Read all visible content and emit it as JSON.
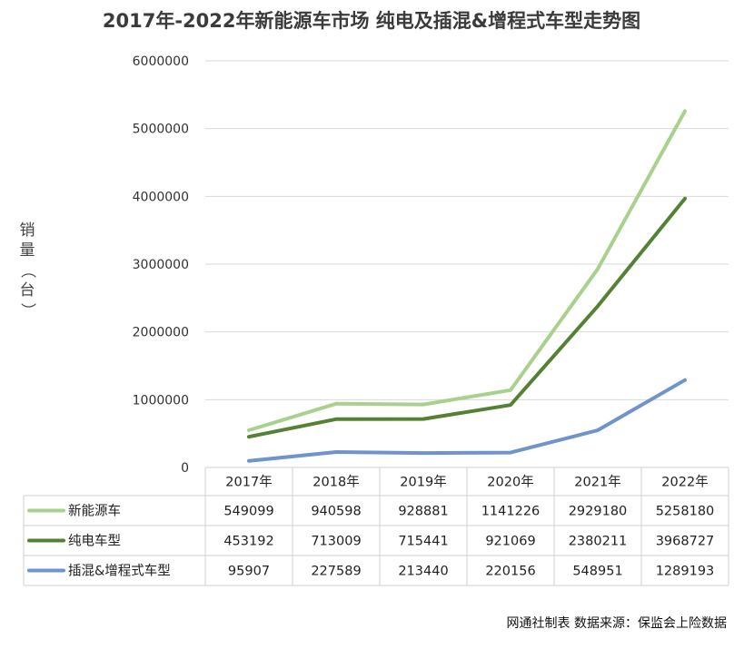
{
  "chart_data": {
    "type": "line",
    "title": "2017年-2022年新能源车市场 纯电及插混&增程式车型走势图",
    "ylabel": "销量（台）",
    "xlabel": "",
    "categories": [
      "2017年",
      "2018年",
      "2019年",
      "2020年",
      "2021年",
      "2022年"
    ],
    "ylim": [
      0,
      6000000
    ],
    "yticks": [
      0,
      1000000,
      2000000,
      3000000,
      4000000,
      5000000,
      6000000
    ],
    "grid": true,
    "legend": "data-table",
    "series": [
      {
        "name": "新能源车",
        "color": "#a9d18e",
        "values": [
          549099,
          940598,
          928881,
          1141226,
          2929180,
          5258180
        ]
      },
      {
        "name": "纯电车型",
        "color": "#548235",
        "values": [
          453192,
          713009,
          715441,
          921069,
          2380211,
          3968727
        ]
      },
      {
        "name": "插混&增程式车型",
        "color": "#6f93cb",
        "values": [
          95907,
          227589,
          213440,
          220156,
          548951,
          1289193
        ]
      }
    ]
  },
  "footer": {
    "source": "网通社制表 数据来源：保监会上险数据"
  }
}
